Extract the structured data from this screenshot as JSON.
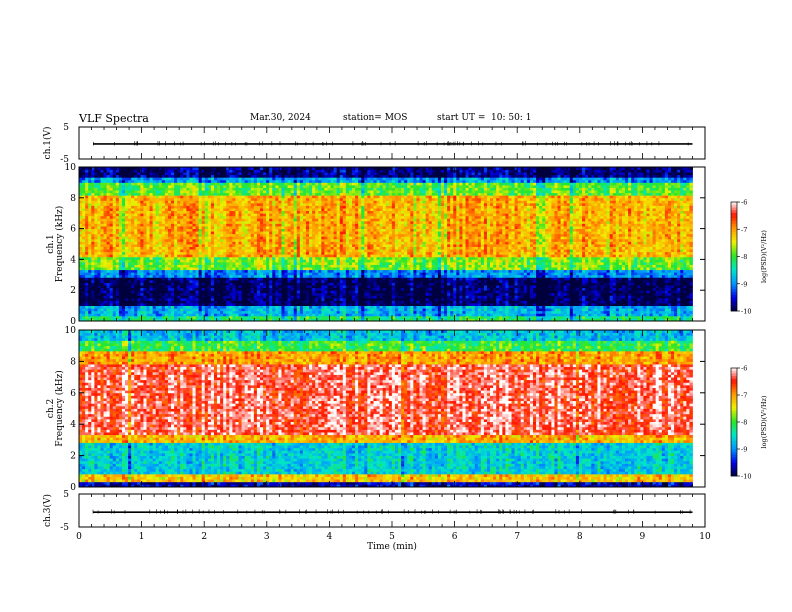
{
  "header": {
    "title": "VLF Spectra",
    "date": "Mar.30, 2024",
    "station": "station= MOS",
    "start_ut_label": "start  UT  =",
    "start_ut_value": "10: 50: 1"
  },
  "chart_data": [
    {
      "type": "line",
      "ylabel": "ch.1(V)",
      "ylim": [
        -5,
        5
      ],
      "yticks": [
        "5",
        "-5"
      ],
      "xlim": [
        0,
        10
      ],
      "baseline_value": -0.3
    },
    {
      "type": "heatmap",
      "ylabel_line1": "ch.1",
      "ylabel_line2": "Frequency (kHz)",
      "ylim": [
        0,
        10
      ],
      "yticks": [
        "0",
        "2",
        "4",
        "6",
        "8",
        "10"
      ],
      "xlim": [
        0,
        10
      ],
      "data_end_min": 9.8,
      "colorbar": {
        "label": "log(PSD)(V²/Hz)",
        "range": [
          -10,
          -6
        ],
        "ticks": [
          "-6",
          "-7",
          "-8",
          "-9",
          "-10"
        ]
      },
      "bands_khz": [
        {
          "from": 0.0,
          "to": 0.4,
          "level": -8.2
        },
        {
          "from": 0.4,
          "to": 1.0,
          "level": -8.8
        },
        {
          "from": 1.0,
          "to": 2.8,
          "level": -9.9
        },
        {
          "from": 2.8,
          "to": 3.3,
          "level": -9.0
        },
        {
          "from": 3.3,
          "to": 4.2,
          "level": -7.8
        },
        {
          "from": 4.2,
          "to": 8.2,
          "level": -7.1
        },
        {
          "from": 8.2,
          "to": 9.0,
          "level": -7.9
        },
        {
          "from": 9.0,
          "to": 9.4,
          "level": -8.9
        },
        {
          "from": 9.4,
          "to": 10.0,
          "level": -9.8
        }
      ]
    },
    {
      "type": "heatmap",
      "ylabel_line1": "ch.2",
      "ylabel_line2": "Frequency (kHz)",
      "ylim": [
        0,
        10
      ],
      "yticks": [
        "0",
        "2",
        "4",
        "6",
        "8",
        "10"
      ],
      "xlim": [
        0,
        10
      ],
      "data_end_min": 9.8,
      "colorbar": {
        "label": "log(PSD)(V²/Hz)",
        "range": [
          -10,
          -6
        ],
        "ticks": [
          "-6",
          "-7",
          "-8",
          "-9",
          "-10"
        ]
      },
      "bands_khz": [
        {
          "from": 0.0,
          "to": 0.3,
          "level": -9.6
        },
        {
          "from": 0.3,
          "to": 0.8,
          "level": -7.2
        },
        {
          "from": 0.8,
          "to": 2.8,
          "level": -8.6
        },
        {
          "from": 2.8,
          "to": 3.3,
          "level": -7.1
        },
        {
          "from": 3.3,
          "to": 7.8,
          "level": -6.3
        },
        {
          "from": 7.8,
          "to": 8.6,
          "level": -7.0
        },
        {
          "from": 8.6,
          "to": 9.3,
          "level": -8.0
        },
        {
          "from": 9.3,
          "to": 10.0,
          "level": -8.7
        }
      ]
    },
    {
      "type": "line",
      "ylabel": "ch.3(V)",
      "ylim": [
        -5,
        5
      ],
      "yticks": [
        "5",
        "-5"
      ],
      "xlim": [
        0,
        10
      ],
      "baseline_value": -0.5
    }
  ],
  "xaxis": {
    "label": "Time  (min)",
    "ticks": [
      "0",
      "1",
      "2",
      "3",
      "4",
      "5",
      "6",
      "7",
      "8",
      "9",
      "10"
    ]
  }
}
